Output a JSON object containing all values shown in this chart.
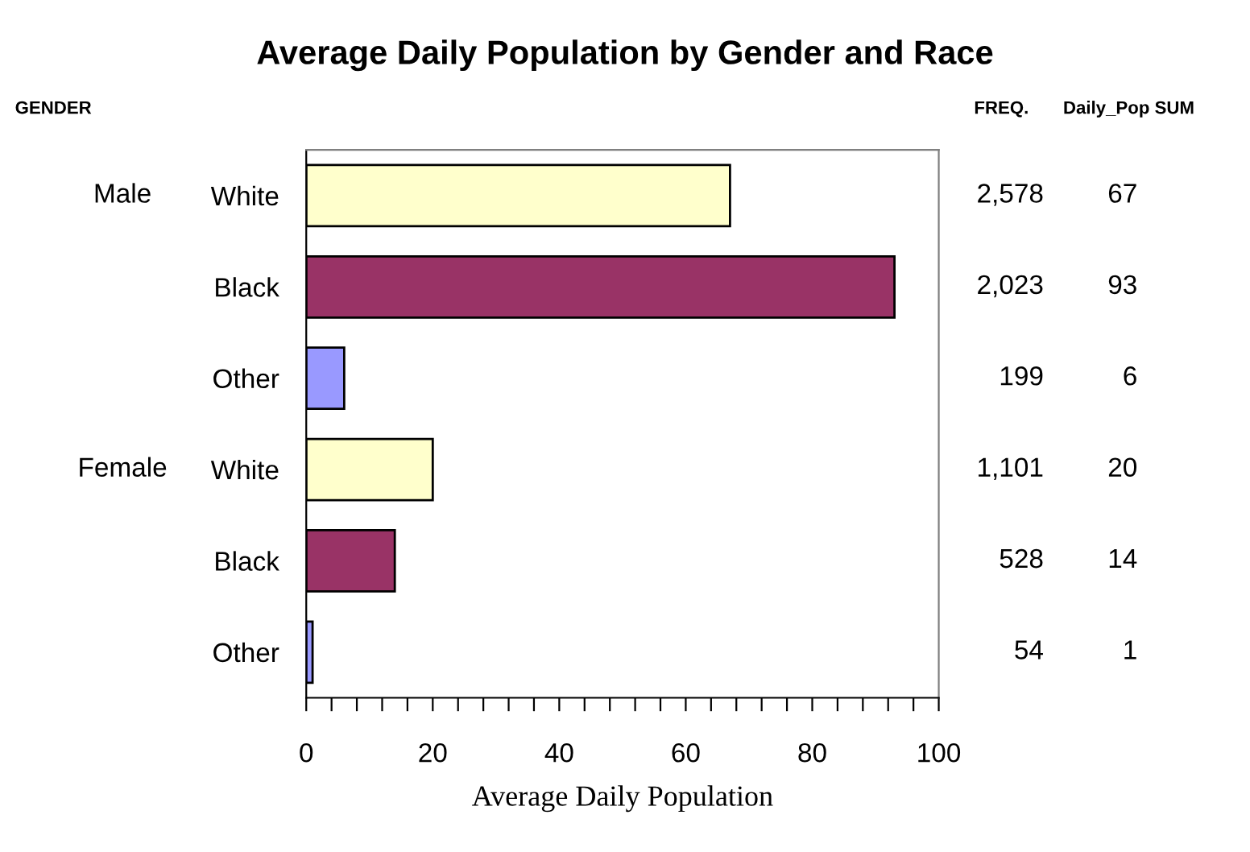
{
  "chart_data": {
    "type": "bar",
    "orientation": "horizontal",
    "title": "Average Daily Population by Gender and Race",
    "xlabel": "Average Daily Population",
    "categories": [
      "White",
      "Black",
      "Other",
      "White",
      "Black",
      "Other"
    ],
    "values": [
      67,
      93,
      6,
      20,
      14,
      1
    ],
    "colors": [
      "#ffffcc",
      "#993366",
      "#9999ff",
      "#ffffcc",
      "#993366",
      "#9999ff"
    ],
    "data_labels": true,
    "xlim": [
      0,
      100
    ],
    "xticks": [
      0,
      {
        "value": 4,
        "label": null
      },
      {
        "value": 8,
        "label": null
      },
      {
        "value": 12,
        "label": null
      },
      {
        "value": 16,
        "label": null
      },
      20,
      {
        "value": 24,
        "label": null
      },
      {
        "value": 28,
        "label": null
      },
      {
        "value": 32,
        "label": null
      },
      {
        "value": 36,
        "label": null
      },
      40,
      {
        "value": 44,
        "label": null
      },
      {
        "value": 48,
        "label": null
      },
      {
        "value": 52,
        "label": null
      },
      {
        "value": 56,
        "label": null
      },
      60,
      {
        "value": 64,
        "label": null
      },
      {
        "value": 68,
        "label": null
      },
      {
        "value": 72,
        "label": null
      },
      {
        "value": 76,
        "label": null
      },
      80,
      {
        "value": 84,
        "label": null
      },
      {
        "value": 88,
        "label": null
      },
      {
        "value": 92,
        "label": null
      },
      {
        "value": 96,
        "label": null
      },
      100
    ],
    "grid": false,
    "legend": false,
    "annotations": [
      "GENDER",
      "FREQ.",
      "Daily_Pop SUM",
      "Male",
      "Female",
      "2,578",
      "2,023",
      "199",
      "1,101",
      "528",
      "54"
    ]
  }
}
